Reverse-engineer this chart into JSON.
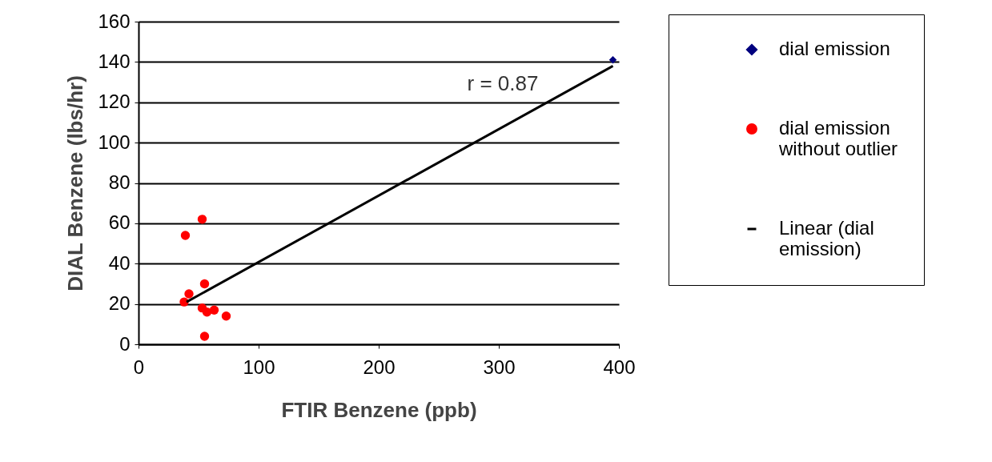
{
  "chart_data": {
    "type": "scatter",
    "xlabel": "FTIR Benzene (ppb)",
    "ylabel": "DIAL Benzene (lbs/hr)",
    "xlim": [
      0,
      400
    ],
    "xticks": [
      0,
      100,
      200,
      300,
      400
    ],
    "ylim": [
      0,
      160
    ],
    "yticks": [
      0,
      20,
      40,
      60,
      80,
      100,
      120,
      140,
      160
    ],
    "grid": "y",
    "legend": "right",
    "annotations": [
      "r = 0.87"
    ],
    "series": [
      {
        "name": "dial emission",
        "color": "#00007f",
        "marker": "diamond",
        "x": [
          395
        ],
        "values": [
          141
        ]
      },
      {
        "name": "dial emission without outlier",
        "color": "#ff0000",
        "marker": "circle",
        "x": [
          53,
          39,
          55,
          42,
          38,
          53,
          57,
          63,
          73,
          55
        ],
        "values": [
          62,
          54,
          30,
          25,
          21,
          18,
          16,
          17,
          14,
          4
        ]
      },
      {
        "name": "Linear (dial emission)",
        "type": "line",
        "color": "#000000",
        "x": [
          40,
          395
        ],
        "values": [
          21,
          138
        ]
      }
    ]
  }
}
